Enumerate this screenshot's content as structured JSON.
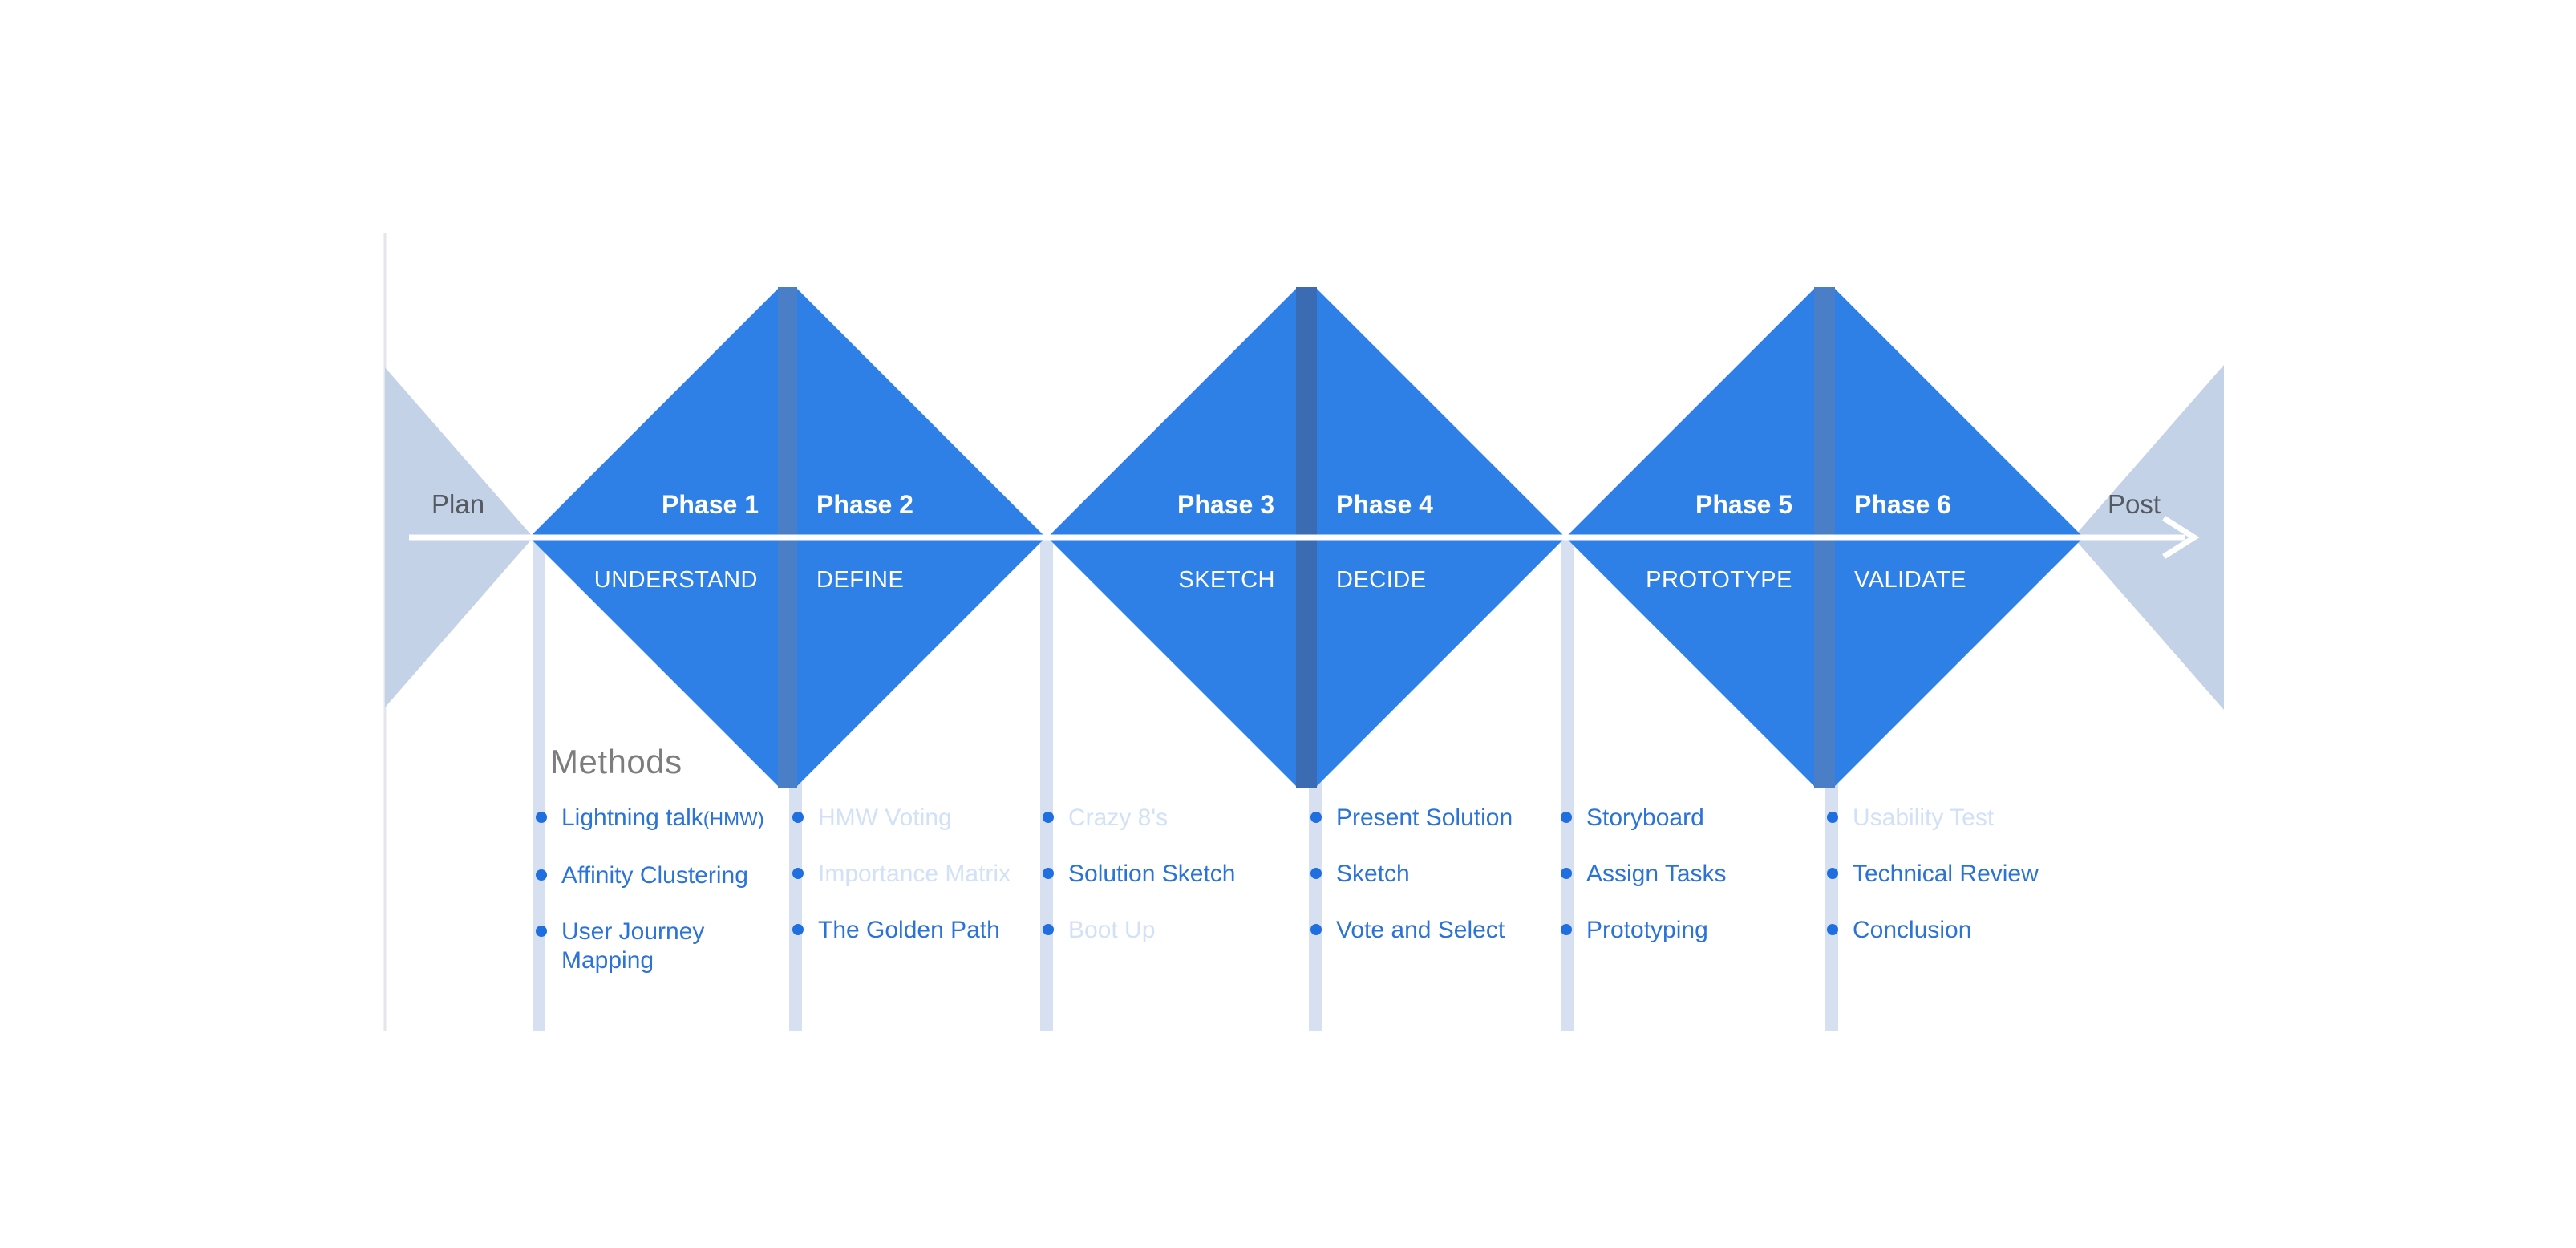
{
  "labels": {
    "plan": "Plan",
    "post": "Post",
    "methods_title": "Methods"
  },
  "phases": [
    {
      "title": "Phase 1",
      "name": "UNDERSTAND"
    },
    {
      "title": "Phase 2",
      "name": "DEFINE"
    },
    {
      "title": "Phase 3",
      "name": "SKETCH"
    },
    {
      "title": "Phase 4",
      "name": "DECIDE"
    },
    {
      "title": "Phase 5",
      "name": "PROTOTYPE"
    },
    {
      "title": "Phase 6",
      "name": "VALIDATE"
    }
  ],
  "methods": [
    {
      "items": [
        {
          "text": "Lightning talk",
          "suffix": "(HMW)",
          "faded": false
        },
        {
          "text": "Affinity Clustering",
          "faded": false
        },
        {
          "text": "User Journey Mapping",
          "faded": false
        }
      ]
    },
    {
      "items": [
        {
          "text": "HMW Voting",
          "faded": true
        },
        {
          "text": "Importance Matrix",
          "faded": true
        },
        {
          "text": "The Golden Path",
          "faded": false
        }
      ]
    },
    {
      "items": [
        {
          "text": "Crazy 8's",
          "faded": true
        },
        {
          "text": "Solution Sketch",
          "faded": false
        },
        {
          "text": "Boot Up",
          "faded": true
        }
      ]
    },
    {
      "items": [
        {
          "text": "Present Solution",
          "faded": false
        },
        {
          "text": "Sketch",
          "faded": false
        },
        {
          "text": "Vote and Select",
          "faded": false
        }
      ]
    },
    {
      "items": [
        {
          "text": "Storyboard",
          "faded": false
        },
        {
          "text": "Assign Tasks",
          "faded": false
        },
        {
          "text": "Prototyping",
          "faded": false
        }
      ]
    },
    {
      "items": [
        {
          "text": "Usability Test",
          "faded": true
        },
        {
          "text": "Technical Review",
          "faded": false
        },
        {
          "text": "Conclusion",
          "faded": false
        }
      ]
    }
  ],
  "colors": {
    "primary_blue": "#2f80e6",
    "edge_blue": "#3b6bb2",
    "pale_blue": "#c3d2e6",
    "guide_line": "#d6e0f0",
    "faded_text": "#d2e1f7"
  }
}
